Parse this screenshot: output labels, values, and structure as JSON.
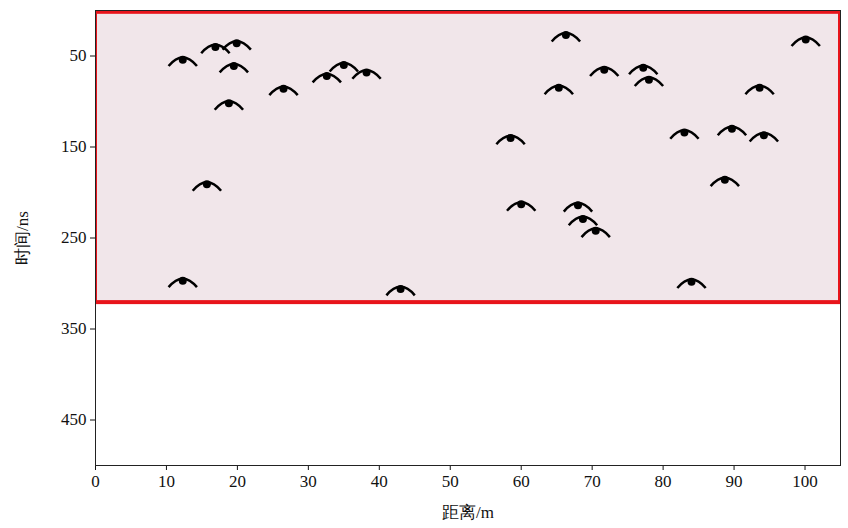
{
  "chart_data": {
    "type": "scatter",
    "x_label": "距离/m",
    "y_label": "时间/ns",
    "x": [
      12.3,
      16.9,
      19.9,
      19.5,
      18.8,
      26.5,
      32.6,
      35.0,
      38.2,
      66.3,
      71.7,
      77.2,
      78.0,
      65.3,
      100.1,
      93.6,
      58.5,
      83.0,
      89.7,
      94.2,
      15.7,
      88.7,
      60.0,
      68.0,
      68.7,
      70.5,
      12.3,
      43.0,
      84.0
    ],
    "values": [
      54,
      40,
      36,
      61,
      102,
      86,
      72,
      60,
      68,
      27,
      65,
      63,
      76,
      85,
      32,
      85,
      140,
      134,
      130,
      137,
      191,
      186,
      213,
      214,
      229,
      242,
      297,
      306,
      298
    ],
    "color": "#000000",
    "marker": "hyperbola",
    "xlim": [
      0,
      105
    ],
    "ylim": [
      0,
      500
    ],
    "xticks": [
      0,
      10,
      20,
      30,
      40,
      50,
      60,
      70,
      80,
      90,
      100
    ],
    "yticks": [
      50,
      150,
      250,
      350,
      450
    ],
    "highlight": {
      "x": [
        0,
        105
      ],
      "y": [
        2,
        321
      ],
      "color": "#e8141b"
    },
    "grid": false
  }
}
